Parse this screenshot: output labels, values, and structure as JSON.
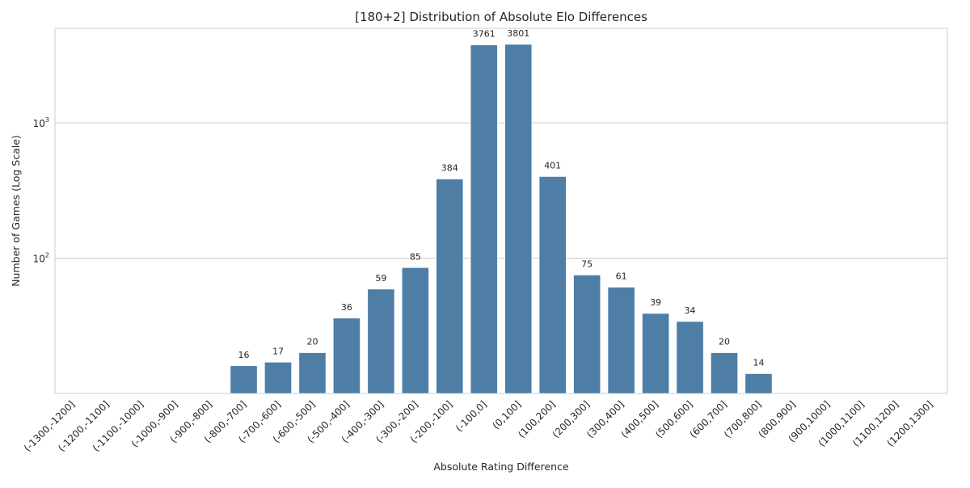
{
  "chart_data": {
    "type": "bar",
    "title": "[180+2] Distribution of Absolute Elo Differences",
    "xlabel": "Absolute Rating Difference",
    "ylabel": "Number of Games (Log Scale)",
    "yscale": "log",
    "ylim": [
      10,
      5000
    ],
    "grid": true,
    "bar_color": "#4e7ea6",
    "y_ticks": [
      {
        "value": 100,
        "base": "10",
        "exp": "2"
      },
      {
        "value": 1000,
        "base": "10",
        "exp": "3"
      }
    ],
    "categories": [
      "(-1300,-1200]",
      "(-1200,-1100]",
      "(-1100,-1000]",
      "(-1000,-900]",
      "(-900,-800]",
      "(-800,-700]",
      "(-700,-600]",
      "(-600,-500]",
      "(-500,-400]",
      "(-400,-300]",
      "(-300,-200]",
      "(-200,-100]",
      "(-100,0]",
      "(0,100]",
      "(100,200]",
      "(200,300]",
      "(300,400]",
      "(400,500]",
      "(500,600]",
      "(600,700]",
      "(700,800]",
      "(800,900]",
      "(900,1000]",
      "(1000,1100]",
      "(1100,1200]",
      "(1200,1300]"
    ],
    "values": [
      0,
      0,
      0,
      0,
      0,
      16,
      17,
      20,
      36,
      59,
      85,
      384,
      3761,
      3801,
      401,
      75,
      61,
      39,
      34,
      20,
      14,
      0,
      0,
      0,
      0,
      0
    ]
  }
}
